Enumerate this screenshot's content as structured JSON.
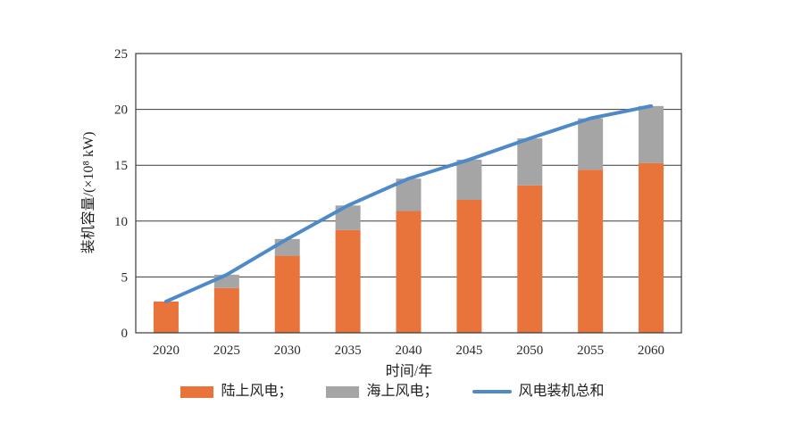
{
  "chart_data": {
    "type": "bar",
    "subtype": "stacked-bars-with-total-line",
    "title": "",
    "xlabel": "时间/年",
    "ylabel": "装机容量/(×10⁸ kW)",
    "categories": [
      "2020",
      "2025",
      "2030",
      "2035",
      "2040",
      "2045",
      "2050",
      "2055",
      "2060"
    ],
    "series": [
      {
        "name": "陆上风电",
        "type": "bar",
        "color": "#E8743C",
        "values": [
          2.8,
          4.0,
          6.9,
          9.2,
          10.9,
          11.9,
          13.2,
          14.6,
          15.2
        ]
      },
      {
        "name": "海上风电",
        "type": "bar",
        "color": "#A5A5A5",
        "values": [
          0.0,
          1.2,
          1.5,
          2.2,
          2.9,
          3.6,
          4.2,
          4.6,
          5.1
        ]
      },
      {
        "name": "风电装机总和",
        "type": "line",
        "color": "#4E8AC8",
        "values": [
          2.8,
          5.2,
          8.4,
          11.4,
          13.8,
          15.5,
          17.4,
          19.2,
          20.3
        ]
      }
    ],
    "ylim": [
      0,
      25
    ],
    "ytick_step": 5,
    "yticks": [
      "0",
      "5",
      "10",
      "15",
      "20",
      "25"
    ],
    "grid": true,
    "axis_color": "#3a3a3a",
    "legend_position": "bottom"
  },
  "legend": {
    "items": [
      {
        "label": "陆上风电；",
        "swatch": "bar"
      },
      {
        "label": "海上风电；",
        "swatch": "bar"
      },
      {
        "label": "风电装机总和",
        "swatch": "line"
      }
    ]
  }
}
